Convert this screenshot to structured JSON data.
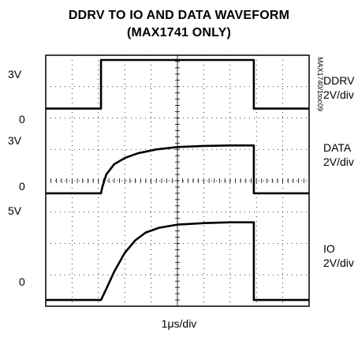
{
  "chart_data": {
    "type": "line",
    "title_line1": "DDRV TO IO AND DATA WAVEFORM",
    "title_line2": "(MAX1741 ONLY)",
    "xlabel": "1μs/div",
    "divisions": {
      "x": 10,
      "y": 8
    },
    "figure_code": "MAX1740/1toc09",
    "channels": [
      {
        "name": "DDRV",
        "scale": "2V/div",
        "top_label": "3V",
        "zero_label": "0",
        "zero_div": 6.3,
        "div_per_volt": 0.5,
        "points": [
          [
            0,
            0
          ],
          [
            2.1,
            0
          ],
          [
            2.1,
            3.1
          ],
          [
            7.9,
            3.1
          ],
          [
            7.9,
            0
          ],
          [
            10,
            0
          ]
        ]
      },
      {
        "name": "DATA",
        "scale": "2V/div",
        "top_label": "3V",
        "zero_label": "0",
        "zero_div": 3.6,
        "div_per_volt": 0.5,
        "points": [
          [
            0,
            0
          ],
          [
            2.1,
            0
          ],
          [
            2.15,
            0.4
          ],
          [
            2.3,
            1.2
          ],
          [
            2.6,
            1.85
          ],
          [
            3.0,
            2.25
          ],
          [
            3.5,
            2.55
          ],
          [
            4.2,
            2.8
          ],
          [
            5.0,
            2.95
          ],
          [
            6.0,
            3.02
          ],
          [
            7.0,
            3.05
          ],
          [
            7.9,
            3.05
          ],
          [
            7.9,
            0
          ],
          [
            10,
            0
          ]
        ]
      },
      {
        "name": "IO",
        "scale": "2V/div",
        "top_label": "5V",
        "zero_label": "0",
        "zero_div": 0.2,
        "div_per_volt": 0.5,
        "points": [
          [
            0,
            0
          ],
          [
            2.1,
            0
          ],
          [
            2.3,
            0.7
          ],
          [
            2.6,
            1.8
          ],
          [
            3.0,
            3.0
          ],
          [
            3.4,
            3.8
          ],
          [
            3.8,
            4.3
          ],
          [
            4.3,
            4.6
          ],
          [
            5.0,
            4.8
          ],
          [
            6.0,
            4.9
          ],
          [
            7.0,
            4.95
          ],
          [
            7.9,
            4.95
          ],
          [
            7.9,
            0
          ],
          [
            10,
            0
          ]
        ]
      }
    ]
  }
}
